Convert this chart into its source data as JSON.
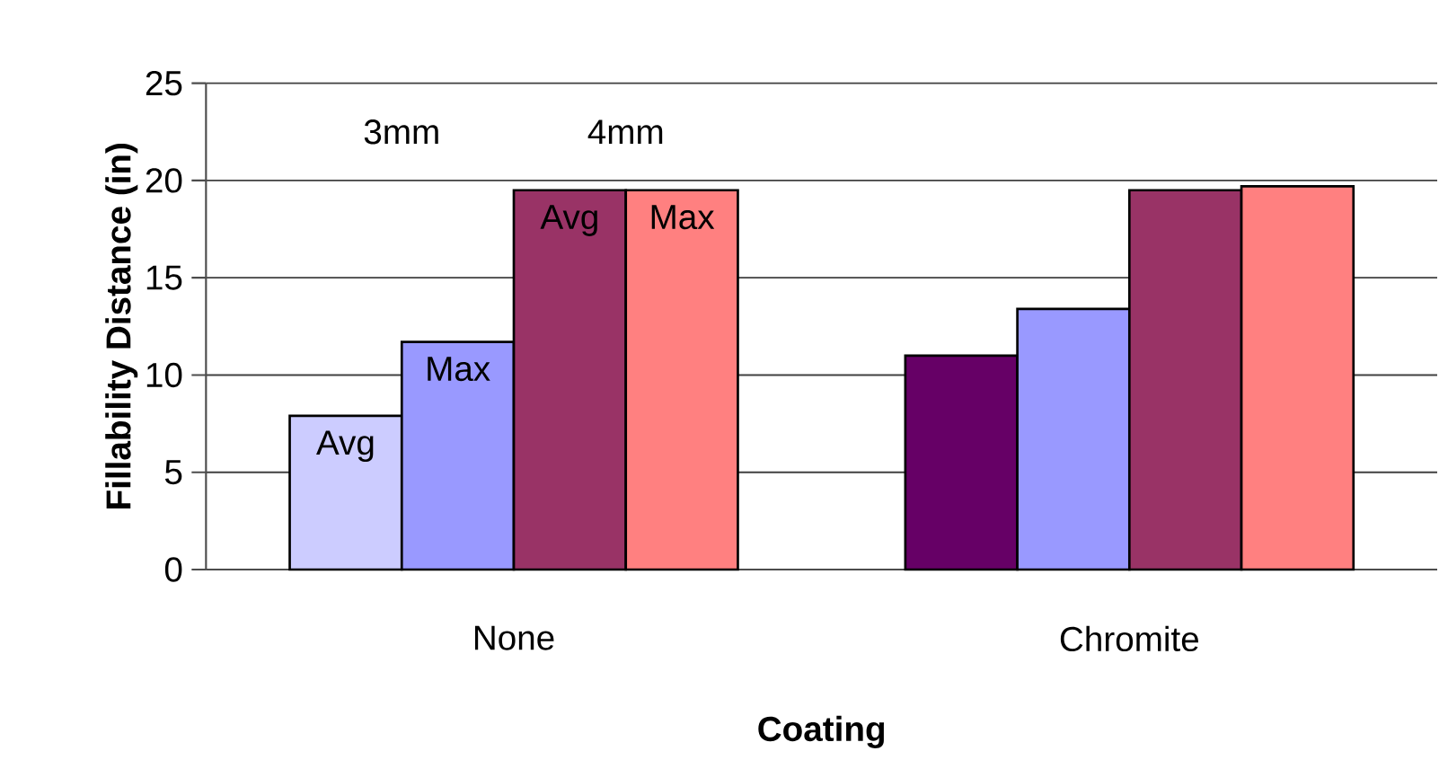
{
  "chart_data": {
    "type": "bar",
    "xlabel": "Coating",
    "ylabel": "Fillability Distance (in)",
    "categories": [
      "None",
      "Chromite"
    ],
    "series": [
      {
        "colors": [
          "#ccccff",
          "#660066"
        ],
        "values": [
          7.9,
          11.0
        ]
      },
      {
        "color": "#9999ff",
        "values": [
          11.7,
          13.4
        ]
      },
      {
        "color": "#993366",
        "values": [
          19.5,
          19.5
        ]
      },
      {
        "color": "#ff8080",
        "values": [
          19.5,
          19.7
        ]
      }
    ],
    "ylim": [
      0,
      25
    ],
    "yticks": [
      0,
      5,
      10,
      15,
      20,
      25
    ],
    "grid": "y",
    "annotations": [
      "Avg",
      "Max",
      "Avg",
      "Max",
      "3mm",
      "4mm"
    ]
  }
}
